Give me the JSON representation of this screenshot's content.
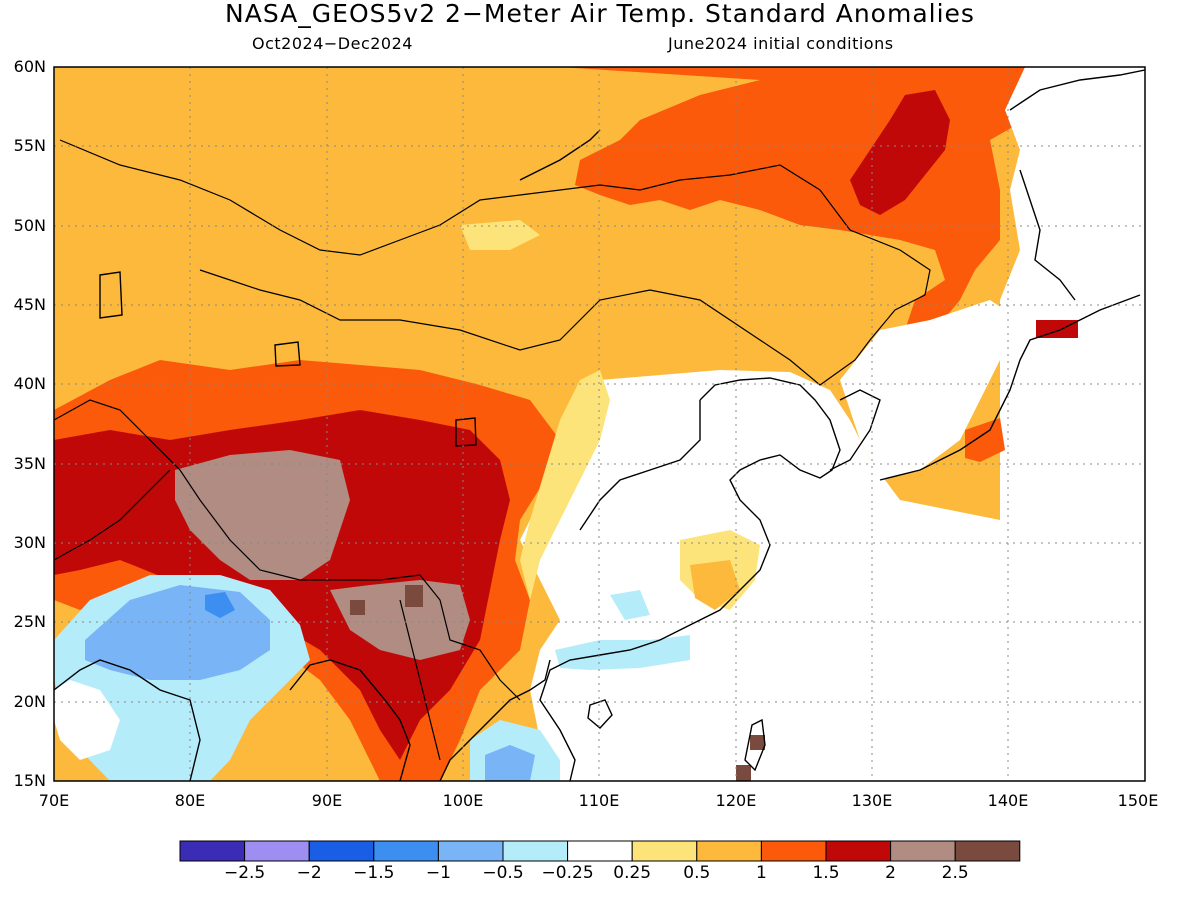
{
  "title": "NASA_GEOS5v2 2−Meter Air Temp. Standard Anomalies",
  "subtitle_left": "Oct2024−Dec2024",
  "subtitle_right": "June2024 initial conditions",
  "lat_labels": [
    "60N",
    "55N",
    "50N",
    "45N",
    "40N",
    "35N",
    "30N",
    "25N",
    "20N",
    "15N"
  ],
  "lon_labels": [
    "70E",
    "80E",
    "90E",
    "100E",
    "110E",
    "120E",
    "130E",
    "140E",
    "150E"
  ],
  "map_extent": {
    "lon": [
      70,
      150
    ],
    "lat": [
      15,
      60
    ]
  },
  "grid": "dotted",
  "colorbar": {
    "colors": [
      "#3a2cb4",
      "#9f8ef2",
      "#1a5ee6",
      "#3c8ff0",
      "#78b4f6",
      "#b4ecfa",
      "#ffffff",
      "#fde47a",
      "#fcb93c",
      "#fa5a0a",
      "#c00808",
      "#b08c82",
      "#7a4a3e"
    ],
    "labels": [
      "−2.5",
      "−2",
      "−1.5",
      "−1",
      "−0.5",
      "−0.25",
      "0.25",
      "0.5",
      "1",
      "1.5",
      "2",
      "2.5"
    ]
  },
  "dominant_colors": {
    "warm_background": "#fcb93c",
    "north_east_anomaly": "#fa5a0a",
    "tibet_anomaly": "#b08c82",
    "india_cold": "#78b4f6"
  }
}
